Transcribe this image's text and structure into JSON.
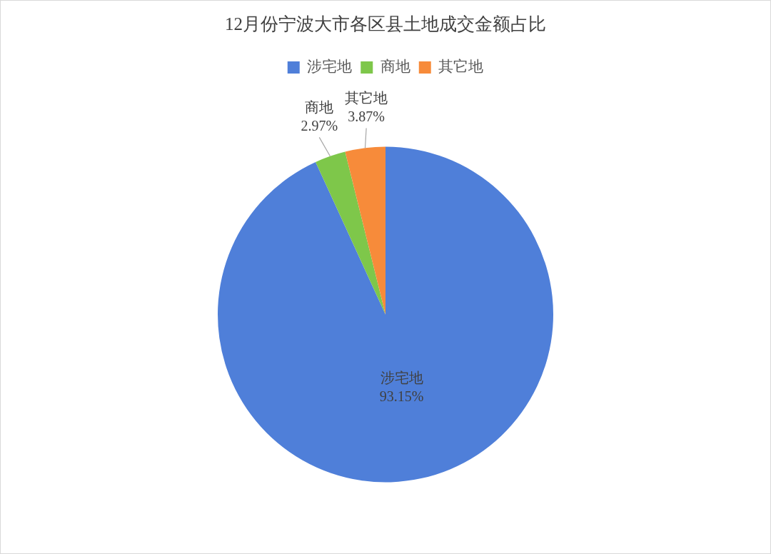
{
  "chart_data": {
    "type": "pie",
    "title": "12月份宁波大市各区县土地成交金额占比",
    "categories": [
      "涉宅地",
      "商地",
      "其它地"
    ],
    "values": [
      93.15,
      2.97,
      3.87
    ],
    "colors": [
      "#4f7fd9",
      "#7ec74a",
      "#f78b3a"
    ],
    "value_labels": [
      "93.15%",
      "2.97%",
      "3.87%"
    ],
    "legend": "top"
  }
}
